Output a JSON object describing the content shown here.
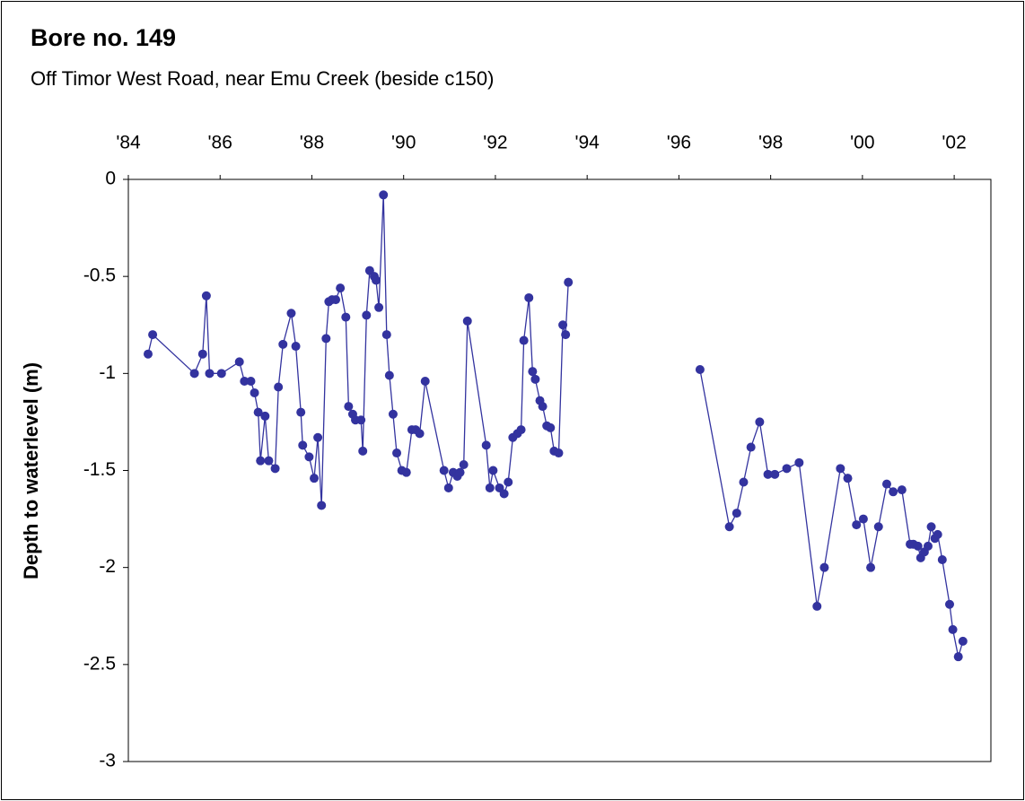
{
  "chart_data": {
    "type": "line",
    "title": "Bore no. 149",
    "subtitle": "Off Timor West Road, near Emu Creek (beside c150)",
    "y_label": "Depth to waterlevel (m)",
    "x_axis_position": "top",
    "color": "#33339f",
    "markers": true,
    "xlim": [
      1984,
      2002.8
    ],
    "xticks": [
      {
        "value": 1984,
        "label": "'84"
      },
      {
        "value": 1986,
        "label": "'86"
      },
      {
        "value": 1988,
        "label": "'88"
      },
      {
        "value": 1990,
        "label": "'90"
      },
      {
        "value": 1992,
        "label": "'92"
      },
      {
        "value": 1994,
        "label": "'94"
      },
      {
        "value": 1996,
        "label": "'96"
      },
      {
        "value": 1998,
        "label": "'98"
      },
      {
        "value": 2000,
        "label": "'00"
      },
      {
        "value": 2002,
        "label": "'02"
      }
    ],
    "ylim": [
      -3,
      0
    ],
    "yticks": [
      0,
      -0.5,
      -1,
      -1.5,
      -2,
      -2.5,
      -3
    ],
    "x": [
      1984.43,
      1984.53,
      1985.44,
      1985.62,
      1985.7,
      1985.77,
      1986.03,
      1986.42,
      1986.53,
      1986.67,
      1986.75,
      1986.83,
      1986.88,
      1986.98,
      1987.06,
      1987.2,
      1987.27,
      1987.37,
      1987.55,
      1987.65,
      1987.76,
      1987.8,
      1987.94,
      1988.05,
      1988.13,
      1988.21,
      1988.31,
      1988.37,
      1988.44,
      1988.52,
      1988.62,
      1988.74,
      1988.8,
      1988.89,
      1988.95,
      1989.07,
      1989.11,
      1989.19,
      1989.26,
      1989.36,
      1989.4,
      1989.46,
      1989.56,
      1989.63,
      1989.69,
      1989.77,
      1989.85,
      1989.96,
      1990.06,
      1990.18,
      1990.26,
      1990.35,
      1990.47,
      1990.88,
      1990.98,
      1991.08,
      1991.17,
      1991.23,
      1991.31,
      1991.39,
      1991.8,
      1991.88,
      1991.95,
      1992.09,
      1992.19,
      1992.28,
      1992.38,
      1992.48,
      1992.56,
      1992.62,
      1992.73,
      1992.81,
      1992.87,
      1992.97,
      1993.03,
      1993.12,
      1993.2,
      1993.28,
      1993.38,
      1993.47,
      1993.53,
      1993.59,
      1995.0,
      1996.46,
      1997.1,
      1997.26,
      1997.41,
      1997.57,
      1997.76,
      1997.94,
      1998.09,
      1998.35,
      1998.62,
      1999.01,
      1999.17,
      1999.52,
      1999.68,
      1999.87,
      2000.02,
      2000.18,
      2000.35,
      2000.53,
      2000.67,
      2000.86,
      2001.04,
      2001.11,
      2001.21,
      2001.27,
      2001.35,
      2001.43,
      2001.5,
      2001.58,
      2001.64,
      2001.74,
      2001.9,
      2001.97,
      2002.09,
      2002.19
    ],
    "values": [
      -0.9,
      -0.8,
      -1.0,
      -0.9,
      -0.6,
      -1.0,
      -1.0,
      -0.94,
      -1.04,
      -1.04,
      -1.1,
      -1.2,
      -1.45,
      -1.22,
      -1.45,
      -1.49,
      -1.07,
      -0.85,
      -0.69,
      -0.86,
      -1.2,
      -1.37,
      -1.43,
      -1.54,
      -1.33,
      -1.68,
      -0.82,
      -0.63,
      -0.62,
      -0.62,
      -0.56,
      -0.71,
      -1.17,
      -1.21,
      -1.24,
      -1.24,
      -1.4,
      -0.7,
      -0.47,
      -0.5,
      -0.52,
      -0.66,
      -0.08,
      -0.8,
      -1.01,
      -1.21,
      -1.41,
      -1.5,
      -1.51,
      -1.29,
      -1.29,
      -1.31,
      -1.04,
      -1.5,
      -1.59,
      -1.51,
      -1.53,
      -1.51,
      -1.47,
      -0.73,
      -1.37,
      -1.59,
      -1.5,
      -1.59,
      -1.62,
      -1.56,
      -1.33,
      -1.31,
      -1.29,
      -0.83,
      -0.61,
      -0.99,
      -1.03,
      -1.14,
      -1.17,
      -1.27,
      -1.28,
      -1.4,
      -1.41,
      -0.75,
      -0.8,
      -0.53,
      null,
      -0.98,
      -1.79,
      -1.72,
      -1.56,
      -1.38,
      -1.25,
      -1.52,
      -1.52,
      -1.49,
      -1.46,
      -2.2,
      -2.0,
      -1.49,
      -1.54,
      -1.78,
      -1.75,
      -2.0,
      -1.79,
      -1.57,
      -1.61,
      -1.6,
      -1.88,
      -1.88,
      -1.89,
      -1.95,
      -1.92,
      -1.89,
      -1.79,
      -1.85,
      -1.83,
      -1.96,
      -2.19,
      -2.32,
      -2.46,
      -2.38
    ]
  }
}
